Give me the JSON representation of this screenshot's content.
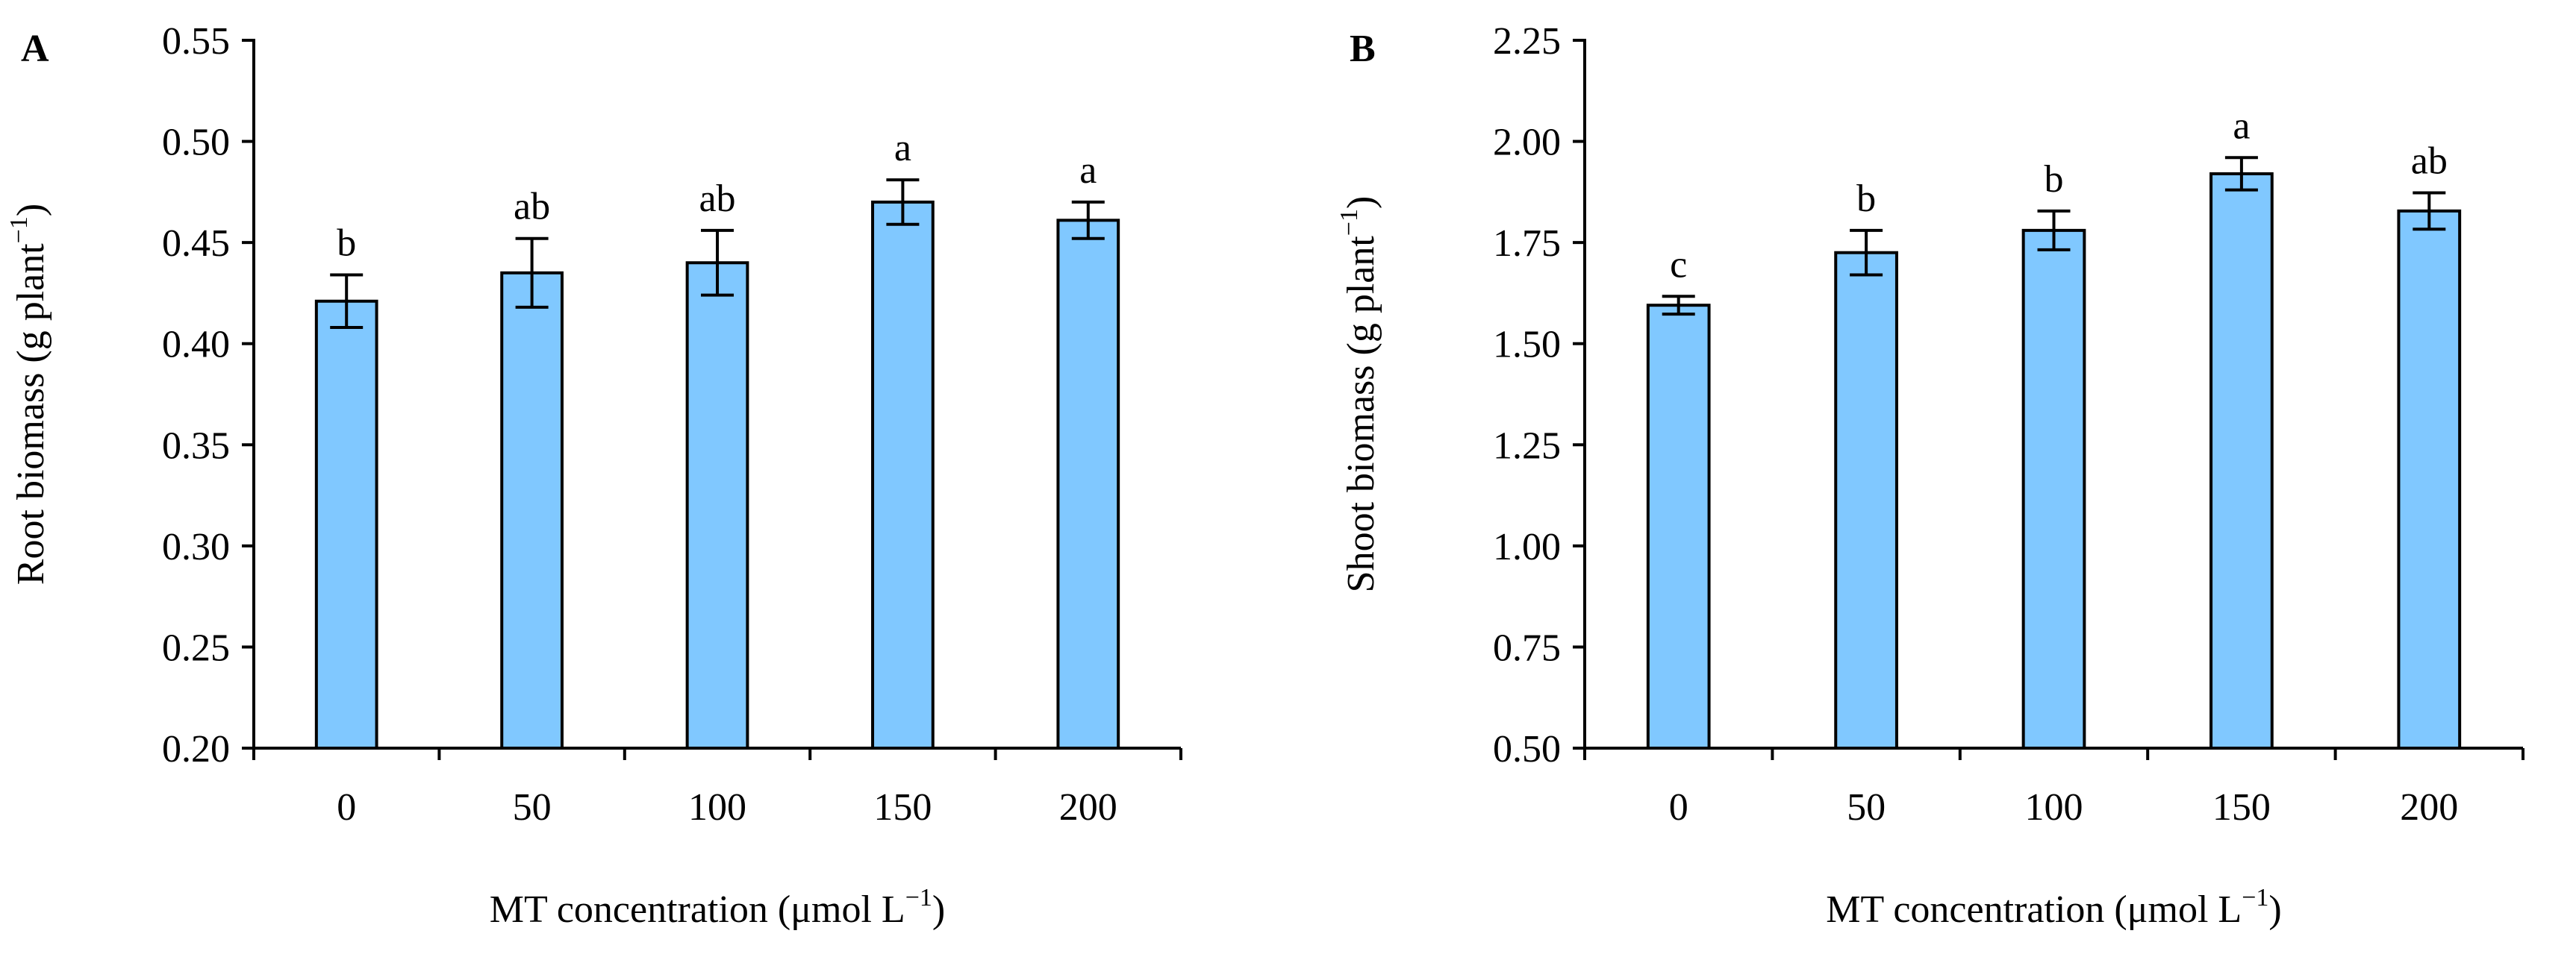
{
  "chart_data": [
    {
      "panel": "A",
      "type": "bar",
      "categories": [
        "0",
        "50",
        "100",
        "150",
        "200"
      ],
      "values": [
        0.421,
        0.435,
        0.44,
        0.47,
        0.461
      ],
      "errors": [
        0.013,
        0.017,
        0.016,
        0.011,
        0.009
      ],
      "letters": [
        "b",
        "ab",
        "ab",
        "a",
        "a"
      ],
      "xlabel": "MT concentration (μmol L",
      "xlabel_sup": "−1",
      "xlabel_end": ")",
      "ylabel": "Root biomass (g plant",
      "ylabel_sup": "−1",
      "ylabel_end": ")",
      "ylim": [
        0.2,
        0.55
      ],
      "yticks": [
        0.2,
        0.25,
        0.3,
        0.35,
        0.4,
        0.45,
        0.5,
        0.55
      ],
      "ytick_decimals": 2,
      "bar_color": "#80c8ff"
    },
    {
      "panel": "B",
      "type": "bar",
      "categories": [
        "0",
        "50",
        "100",
        "150",
        "200"
      ],
      "values": [
        1.595,
        1.725,
        1.78,
        1.92,
        1.828
      ],
      "errors": [
        0.022,
        0.055,
        0.048,
        0.04,
        0.045
      ],
      "letters": [
        "c",
        "b",
        "b",
        "a",
        "ab"
      ],
      "xlabel": "MT concentration (μmol L",
      "xlabel_sup": "−1",
      "xlabel_end": ")",
      "ylabel": "Shoot biomass (g plant",
      "ylabel_sup": "−1",
      "ylabel_end": ")",
      "ylim": [
        0.5,
        2.25
      ],
      "yticks": [
        0.5,
        0.75,
        1.0,
        1.25,
        1.5,
        1.75,
        2.0,
        2.25
      ],
      "ytick_decimals": 2,
      "bar_color": "#80c8ff"
    }
  ]
}
